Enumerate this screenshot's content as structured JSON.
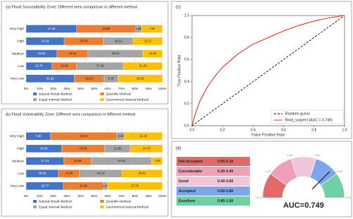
{
  "chart_data": [
    {
      "type": "bar",
      "orientation": "horizontal",
      "stacked": "percent",
      "title": "(a) Flood Susceptibility Zone: Different area comparison in different method",
      "categories": [
        "Very High",
        "High",
        "Medium",
        "Low",
        "Very Low"
      ],
      "series": [
        {
          "name": "Natural Break Method",
          "color": "#4472c4",
          "values": [
            17.0,
            19.93,
            20.53,
            20.75,
            31.82
          ],
          "value_labels": [
            "17.00",
            "19.93",
            "20.53",
            "20.75",
            "31.82"
          ]
        },
        {
          "name": "Quantile Method",
          "color": "#ed7d31",
          "values": [
            19.88,
            20.5,
            20.64,
            19.85,
            19.53
          ],
          "value_labels": [
            "19.88",
            "20.50",
            "20.64",
            "19.85",
            "19.53"
          ]
        },
        {
          "name": "Equal Interval Method",
          "color": "#a5a5a5",
          "values": [
            1.86,
            15.62,
            36.52,
            37.49,
            9.35
          ],
          "value_labels": [
            "1.86",
            "15.62",
            "36.52",
            "37.49",
            "9.35"
          ]
        },
        {
          "name": "Geometrical Interval Method",
          "color": "#ffc000",
          "values": [
            7.09,
            15.17,
            12.92,
            31.35,
            29.26
          ],
          "value_labels": [
            "7.09",
            "15.17",
            "12.92",
            "31.35",
            "29.26"
          ]
        }
      ],
      "xlim": [
        0,
        100
      ],
      "xticks": [
        {
          "value": 0,
          "label": "0%"
        },
        {
          "value": 10,
          "label": "10%"
        },
        {
          "value": 20,
          "label": "20%"
        },
        {
          "value": 30,
          "label": "30%"
        },
        {
          "value": 40,
          "label": "40%"
        },
        {
          "value": 50,
          "label": "50%"
        },
        {
          "value": 60,
          "label": "60%"
        },
        {
          "value": 70,
          "label": "70%"
        },
        {
          "value": 80,
          "label": "80%"
        },
        {
          "value": 90,
          "label": "90%"
        },
        {
          "value": 100,
          "label": "100%"
        }
      ],
      "legend": "bottom"
    },
    {
      "type": "bar",
      "orientation": "horizontal",
      "stacked": "percent",
      "title": "(b) Flood Vulnerability Zone: Different area comparison in different method",
      "categories": [
        "Very High",
        "High",
        "Medium",
        "Low",
        "Very Low"
      ],
      "series": [
        {
          "name": "Natural Break Method",
          "color": "#4472c4",
          "values": [
            7.3,
            16.39,
            27.13,
            30.66,
            18.77
          ],
          "value_labels": [
            "7.30",
            "16.39",
            "27.13",
            "30.66",
            "18.77"
          ]
        },
        {
          "name": "Quantile Method",
          "color": "#ed7d31",
          "values": [
            19.94,
            19.99,
            19.99,
            19.99,
            20.09
          ],
          "value_labels": [
            "19.94",
            "19.99",
            "19.99",
            "19.99",
            "20.09"
          ]
        },
        {
          "name": "Equal Interval Method",
          "color": "#a5a5a5",
          "values": [
            2.19,
            11.95,
            43.63,
            40.23,
            2.0
          ],
          "value_labels": [
            "2.19",
            "11.95",
            "43.63",
            "40.23",
            "2.00"
          ]
        },
        {
          "name": "Geometrical Interval Method",
          "color": "#ffc000",
          "values": [
            11.43,
            14.75,
            7.69,
            38.41,
            27.7
          ],
          "value_labels": [
            "11.43",
            "14.75",
            "7.69",
            "38.41",
            "27.70"
          ]
        }
      ],
      "xlim": [
        0,
        100
      ],
      "xticks": [
        {
          "value": 0,
          "label": "0%"
        },
        {
          "value": 10,
          "label": "10%"
        },
        {
          "value": 20,
          "label": "20%"
        },
        {
          "value": 30,
          "label": "30%"
        },
        {
          "value": 40,
          "label": "40%"
        },
        {
          "value": 50,
          "label": "50%"
        },
        {
          "value": 60,
          "label": "60%"
        },
        {
          "value": 70,
          "label": "70%"
        },
        {
          "value": 80,
          "label": "80%"
        },
        {
          "value": 90,
          "label": "90%"
        },
        {
          "value": 100,
          "label": "100%"
        }
      ],
      "legend": "bottom"
    },
    {
      "type": "line",
      "panel_label": "(c)",
      "xlabel": "False Positive Rate",
      "ylabel": "True Positive Rate",
      "series": [
        {
          "name": "Random guess",
          "color": "#000000",
          "style": "dashed",
          "x": [
            0,
            1
          ],
          "values": [
            0,
            1
          ]
        },
        {
          "name": "flood_suspect (AUC = 0.749)",
          "color": "#e0302a",
          "style": "solid",
          "x": [
            0,
            0.02,
            0.05,
            0.1,
            0.15,
            0.2,
            0.3,
            0.4,
            0.5,
            0.6,
            0.7,
            0.8,
            0.9,
            1
          ],
          "values": [
            0,
            0.1,
            0.22,
            0.35,
            0.45,
            0.53,
            0.65,
            0.74,
            0.8,
            0.86,
            0.91,
            0.95,
            0.98,
            1
          ]
        }
      ],
      "xlim": [
        0,
        1
      ],
      "ylim": [
        0,
        1
      ],
      "xticks": [
        {
          "value": 0,
          "label": "0.0"
        },
        {
          "value": 0.2,
          "label": "0.2"
        },
        {
          "value": 0.4,
          "label": "0.4"
        },
        {
          "value": 0.6,
          "label": "0.6"
        },
        {
          "value": 0.8,
          "label": "0.8"
        },
        {
          "value": 1,
          "label": "1.0"
        }
      ],
      "yticks": [
        {
          "value": 0,
          "label": "0.0"
        },
        {
          "value": 0.2,
          "label": "0.2"
        },
        {
          "value": 0.4,
          "label": "0.4"
        },
        {
          "value": 0.6,
          "label": "0.6"
        },
        {
          "value": 0.8,
          "label": "0.8"
        },
        {
          "value": 1,
          "label": "1.0"
        }
      ],
      "legend": "lower right"
    },
    {
      "type": "gauge",
      "panel_label": "(d)",
      "value": 0.749,
      "value_label": "AUC=0.749",
      "categories": [
        "Not Accepted",
        "Considerable",
        "Good",
        "Accepted",
        "Excellent"
      ],
      "ranges": [
        "0.00-0.20",
        "0.20-0.40",
        "0.40-0.60",
        "0.60-0.80",
        "0.80-1.00"
      ],
      "colors": [
        "#e46a6a",
        "#eda0b8",
        "#f2c4d8",
        "#7ea6ec",
        "#6fd0a3"
      ],
      "ticks": [
        {
          "value": 0,
          "label": "0.00"
        },
        {
          "value": 0.2,
          "label": "0.20"
        },
        {
          "value": 0.4,
          "label": "0.40"
        },
        {
          "value": 0.6,
          "label": "0.60"
        },
        {
          "value": 0.8,
          "label": "0.80"
        },
        {
          "value": 1,
          "label": "1.00"
        }
      ],
      "lim": [
        0,
        1
      ]
    }
  ]
}
